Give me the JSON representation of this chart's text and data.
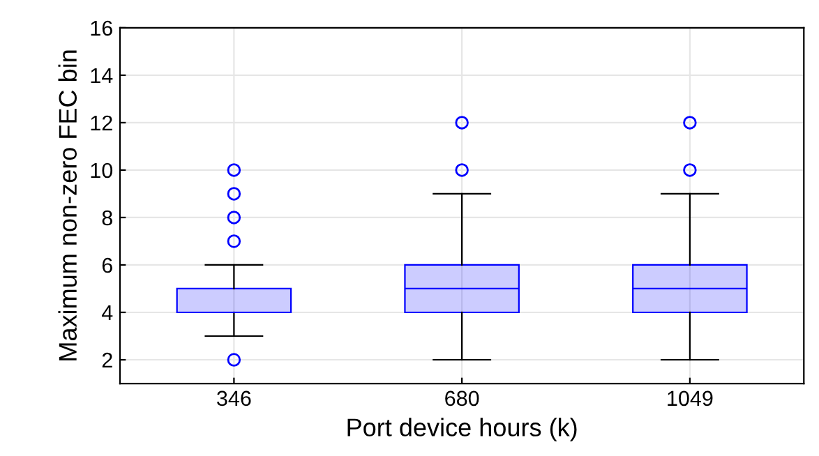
{
  "chart_data": {
    "type": "box",
    "xlabel": "Port device hours (k)",
    "ylabel": "Maximum non-zero FEC bin",
    "categories": [
      "346",
      "680",
      "1049"
    ],
    "color": "#0000ff",
    "boxes": [
      {
        "low": 3,
        "q1": 4,
        "median": 4,
        "q3": 5,
        "high": 6,
        "outliers": [
          2,
          7,
          8,
          9,
          10
        ]
      },
      {
        "low": 2,
        "q1": 4,
        "median": 5,
        "q3": 6,
        "high": 9,
        "outliers": [
          10,
          12
        ]
      },
      {
        "low": 2,
        "q1": 4,
        "median": 5,
        "q3": 6,
        "high": 9,
        "outliers": [
          10,
          12
        ]
      }
    ],
    "ylim": [
      1,
      16
    ],
    "yticks": [
      2,
      4,
      6,
      8,
      10,
      12,
      14,
      16
    ],
    "grid": true
  }
}
